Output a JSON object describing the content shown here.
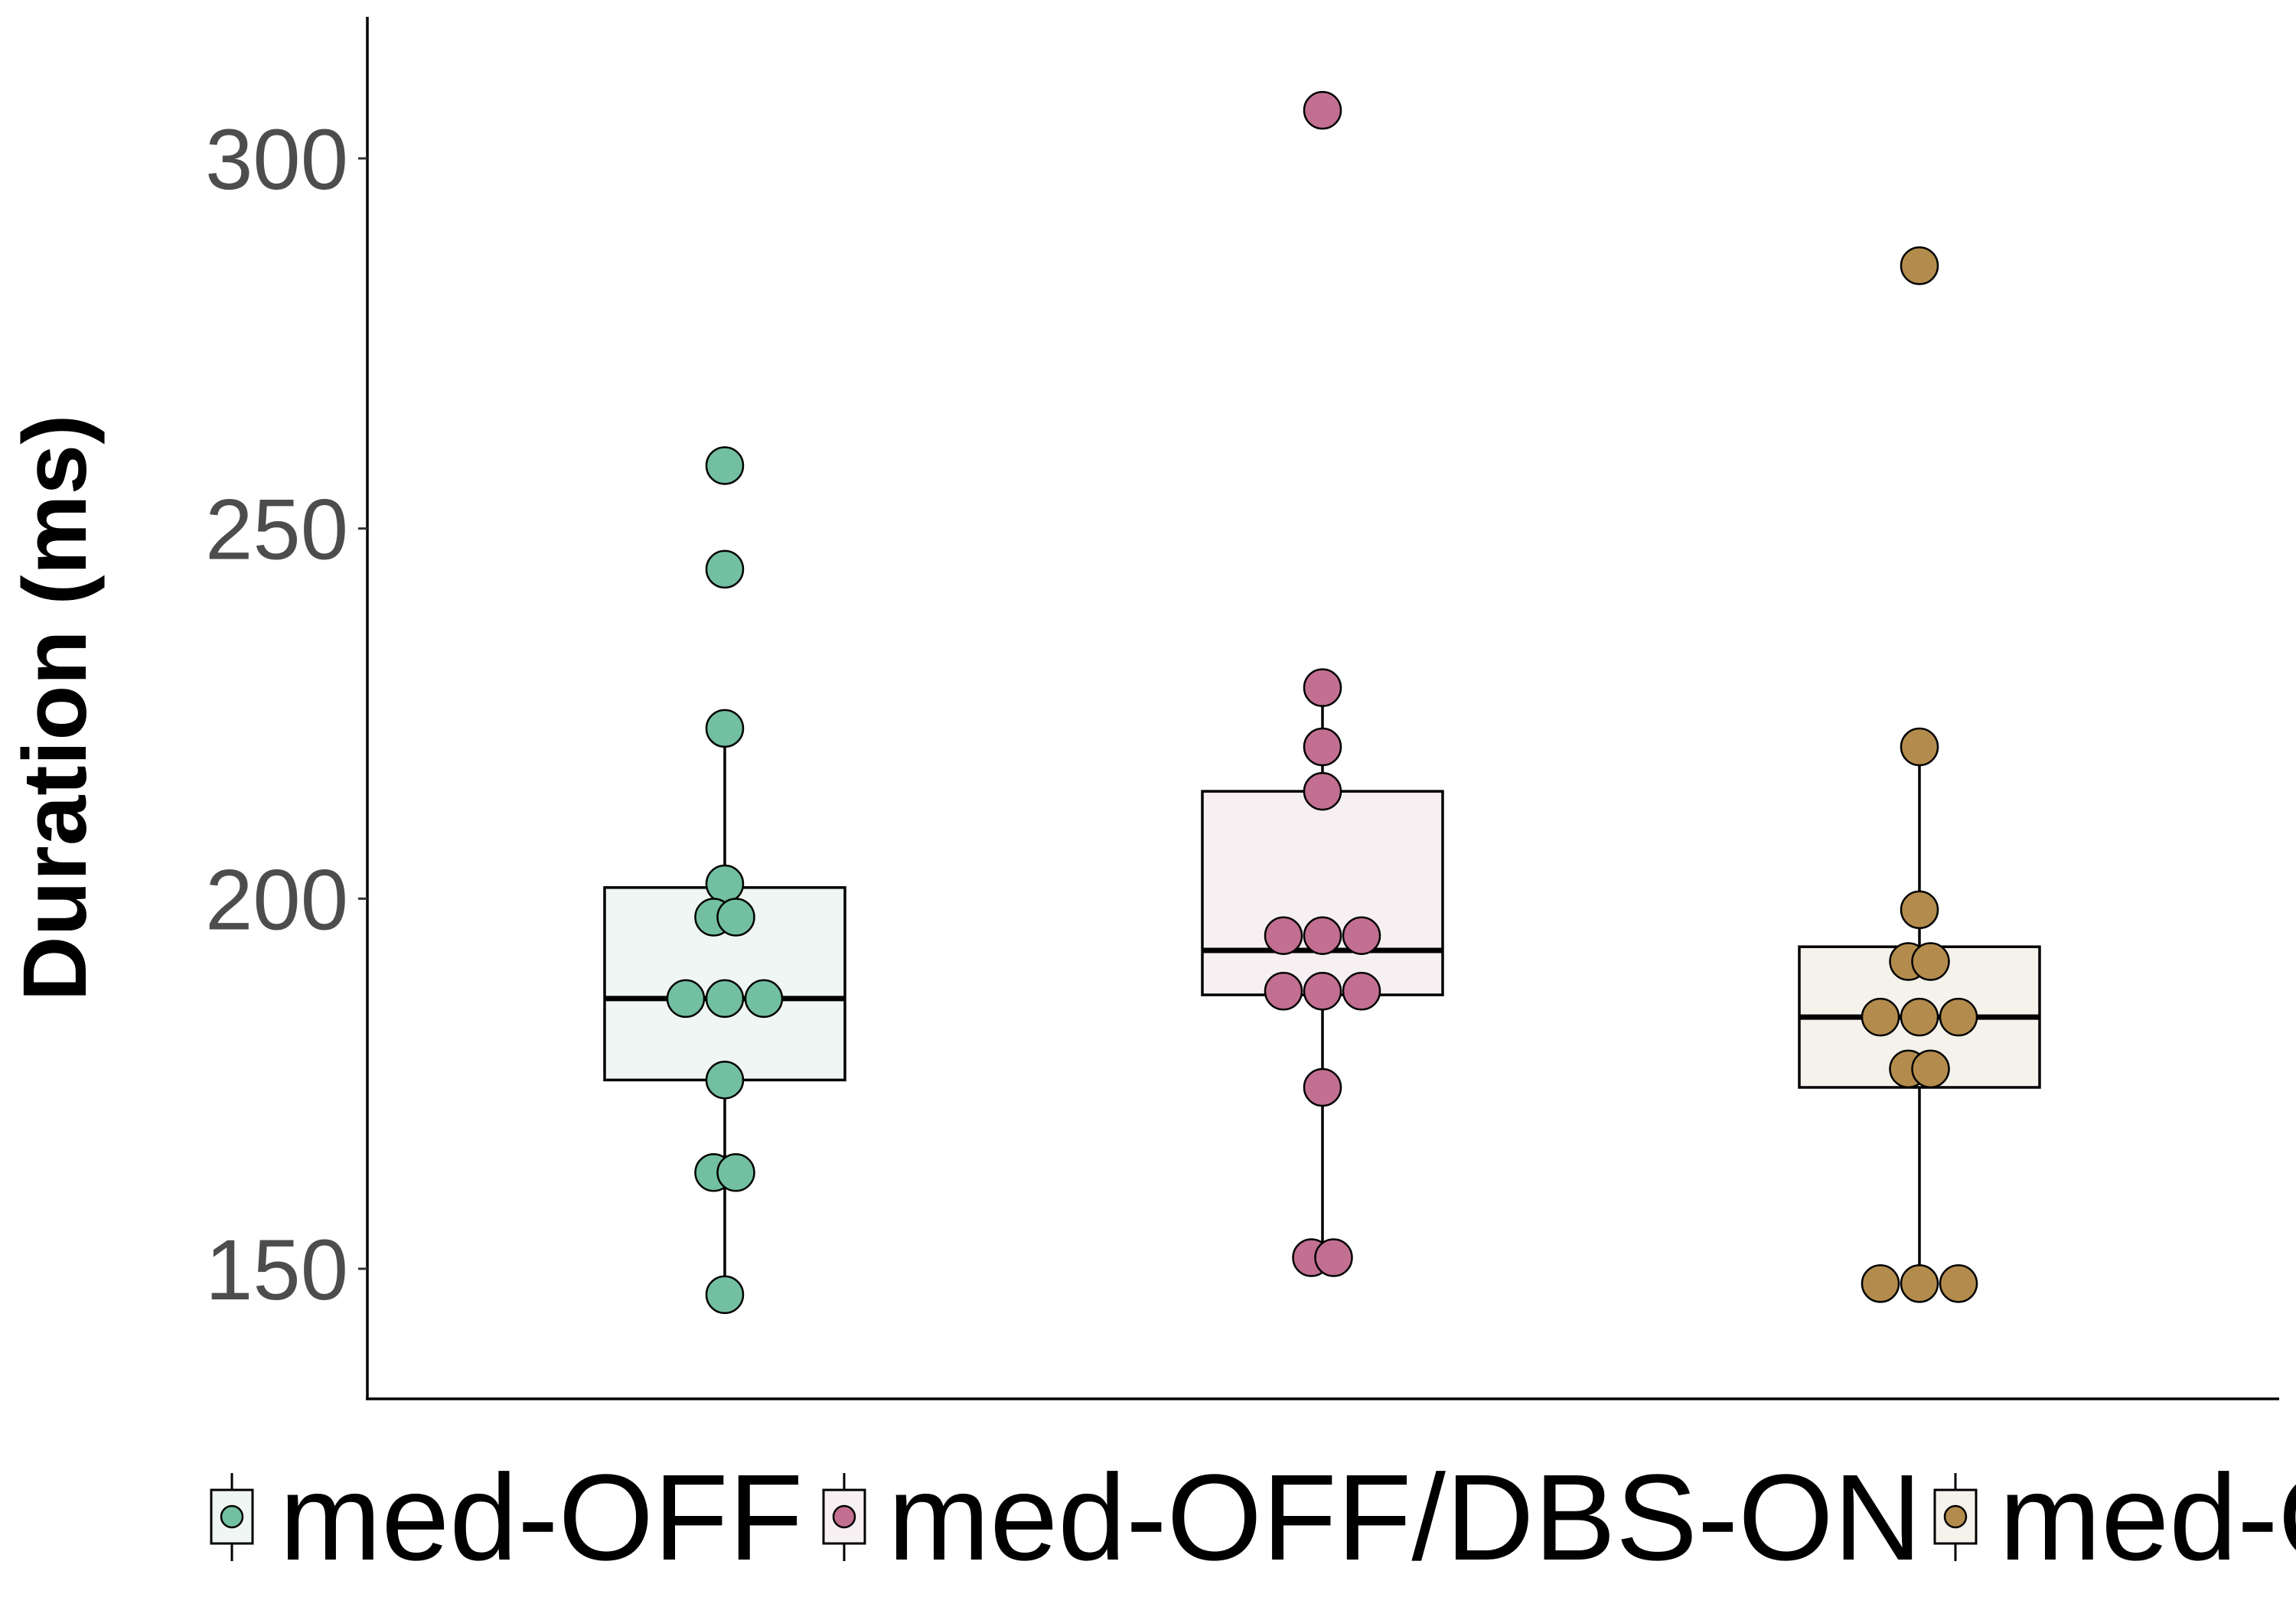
{
  "chart_data": {
    "type": "box",
    "ylabel": "Duration (ms)",
    "xlabel": "",
    "ylim": [
      136,
      320
    ],
    "yticks": [
      150,
      200,
      250,
      300
    ],
    "grid": false,
    "legend_position": "bottom",
    "groups": [
      {
        "name": "med-OFF",
        "color": "#72bfa1",
        "box_fill": "#f0f6f3",
        "box": {
          "q1": 175.5,
          "median": 186.5,
          "q3": 201.5,
          "whisker_low": 146,
          "whisker_high": 223
        },
        "points": [
          258.5,
          244.5,
          223,
          202,
          197.5,
          197.5,
          186.5,
          186.5,
          186.5,
          175.5,
          163,
          163,
          146.5
        ]
      },
      {
        "name": "med-OFF/DBS-ON",
        "color": "#c26f91",
        "box_fill": "#f6f0f2",
        "box": {
          "q1": 187,
          "median": 193,
          "q3": 214.5,
          "whisker_low": 151,
          "whisker_high": 228.5
        },
        "points": [
          306.5,
          228.5,
          220.5,
          214.5,
          195,
          195,
          195,
          187.5,
          187.5,
          187.5,
          174.5,
          151.5,
          151.5
        ]
      },
      {
        "name": "med-ON/DBS-ON",
        "color": "#b38c4d",
        "box_fill": "#f5f2ec",
        "box": {
          "q1": 174.5,
          "median": 184,
          "q3": 193.5,
          "whisker_low": 148,
          "whisker_high": 220.5
        },
        "points": [
          285.5,
          220.5,
          198.5,
          191.5,
          191.5,
          184,
          184,
          184,
          177,
          177,
          148,
          148,
          148
        ]
      }
    ]
  }
}
